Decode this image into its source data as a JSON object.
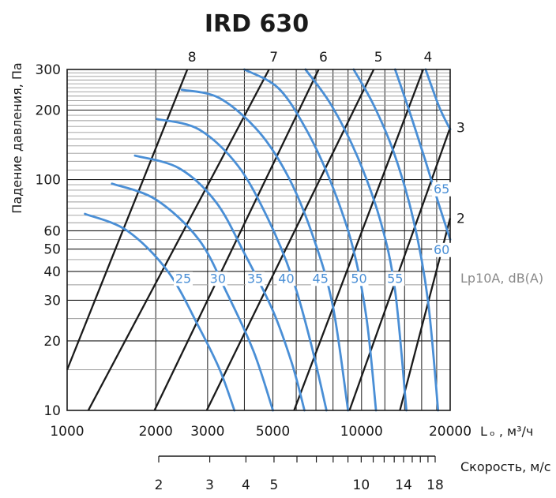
{
  "chart_data": {
    "type": "line",
    "title": "IRD 630",
    "xlabel": "L ₒ , м³/ч",
    "ylabel": "Падение давления, Па",
    "x_scale": "log",
    "y_scale": "log",
    "xlim": [
      1000,
      20000
    ],
    "ylim": [
      10,
      300
    ],
    "x_ticks": [
      {
        "value": 1000,
        "label": "1000"
      },
      {
        "value": 2000,
        "label": "2000"
      },
      {
        "value": 3000,
        "label": "3000"
      },
      {
        "value": 5000,
        "label": "5000"
      },
      {
        "value": 10000,
        "label": "10000"
      },
      {
        "value": 20000,
        "label": "20000"
      }
    ],
    "y_ticks": [
      {
        "value": 10,
        "label": "10"
      },
      {
        "value": 20,
        "label": "20"
      },
      {
        "value": 30,
        "label": "30"
      },
      {
        "value": 40,
        "label": "40"
      },
      {
        "value": 50,
        "label": "50"
      },
      {
        "value": 60,
        "label": "60"
      },
      {
        "value": 100,
        "label": "100"
      },
      {
        "value": 200,
        "label": "200"
      },
      {
        "value": 300,
        "label": "300"
      }
    ],
    "grid": true,
    "velocity_axis": {
      "label": "Скорость, м/с",
      "ticks": [
        {
          "value": 2,
          "label": "2"
        },
        {
          "value": 3,
          "label": "3"
        },
        {
          "value": 4,
          "label": "4"
        },
        {
          "value": 5,
          "label": "5"
        },
        {
          "value": 10,
          "label": "10"
        },
        {
          "value": 14,
          "label": "14"
        },
        {
          "value": 18,
          "label": "18"
        }
      ]
    },
    "damper_position_lines": [
      {
        "label": "8",
        "points": [
          [
            1000,
            15
          ],
          [
            2560,
            300
          ]
        ]
      },
      {
        "label": "7",
        "points": [
          [
            1180,
            10
          ],
          [
            4850,
            300
          ]
        ]
      },
      {
        "label": "6",
        "points": [
          [
            1980,
            10
          ],
          [
            7150,
            300
          ]
        ]
      },
      {
        "label": "5",
        "points": [
          [
            2980,
            10
          ],
          [
            11000,
            300
          ]
        ]
      },
      {
        "label": "4",
        "points": [
          [
            5900,
            10
          ],
          [
            16200,
            300
          ]
        ]
      },
      {
        "label": "3",
        "points": [
          [
            9100,
            10
          ],
          [
            20000,
            168
          ]
        ]
      },
      {
        "label": "2",
        "points": [
          [
            13500,
            10
          ],
          [
            20000,
            68
          ]
        ]
      }
    ],
    "sound_level_label": "Lp10A, dB(A)",
    "series": [
      {
        "name": "25",
        "points": [
          [
            1150,
            71
          ],
          [
            1600,
            60
          ],
          [
            2200,
            40
          ],
          [
            2800,
            23
          ],
          [
            3300,
            15
          ],
          [
            3700,
            10
          ]
        ]
      },
      {
        "name": "30",
        "points": [
          [
            1420,
            96
          ],
          [
            2000,
            82
          ],
          [
            2800,
            55
          ],
          [
            3500,
            32
          ],
          [
            4300,
            18
          ],
          [
            5000,
            10
          ]
        ]
      },
      {
        "name": "35",
        "points": [
          [
            1700,
            127
          ],
          [
            2400,
            112
          ],
          [
            3200,
            80
          ],
          [
            4000,
            48
          ],
          [
            5000,
            27
          ],
          [
            5800,
            16
          ],
          [
            6400,
            10
          ]
        ]
      },
      {
        "name": "40",
        "points": [
          [
            2020,
            183
          ],
          [
            2800,
            165
          ],
          [
            3800,
            115
          ],
          [
            4800,
            68
          ],
          [
            5800,
            38
          ],
          [
            6700,
            20
          ],
          [
            7600,
            10
          ]
        ]
      },
      {
        "name": "45",
        "points": [
          [
            2450,
            245
          ],
          [
            3300,
            225
          ],
          [
            4500,
            160
          ],
          [
            5700,
            100
          ],
          [
            6900,
            55
          ],
          [
            8000,
            28
          ],
          [
            9000,
            10
          ]
        ]
      },
      {
        "name": "50",
        "points": [
          [
            4000,
            300
          ],
          [
            5200,
            250
          ],
          [
            6400,
            170
          ],
          [
            7800,
            100
          ],
          [
            9300,
            52
          ],
          [
            10400,
            25
          ],
          [
            11200,
            10
          ]
        ]
      },
      {
        "name": "55",
        "points": [
          [
            6450,
            300
          ],
          [
            7900,
            210
          ],
          [
            9700,
            125
          ],
          [
            11600,
            66
          ],
          [
            13000,
            33
          ],
          [
            14200,
            10
          ]
        ]
      },
      {
        "name": "60",
        "points": [
          [
            9400,
            300
          ],
          [
            11000,
            210
          ],
          [
            12900,
            130
          ],
          [
            15000,
            67
          ],
          [
            16800,
            30
          ],
          [
            18200,
            10
          ]
        ]
      },
      {
        "name": "65",
        "points": [
          [
            13000,
            300
          ],
          [
            14500,
            200
          ],
          [
            16500,
            120
          ],
          [
            18200,
            80
          ],
          [
            20000,
            55
          ]
        ]
      },
      {
        "name": "",
        "points": [
          [
            16500,
            300
          ],
          [
            18400,
            205
          ],
          [
            20000,
            165
          ]
        ]
      }
    ],
    "curve_labels": [
      {
        "text": "25",
        "x": 2480,
        "y": 36
      },
      {
        "text": "30",
        "x": 3250,
        "y": 36
      },
      {
        "text": "35",
        "x": 4350,
        "y": 36
      },
      {
        "text": "40",
        "x": 5550,
        "y": 36
      },
      {
        "text": "45",
        "x": 7250,
        "y": 36
      },
      {
        "text": "50",
        "x": 9800,
        "y": 36
      },
      {
        "text": "55",
        "x": 13000,
        "y": 36
      },
      {
        "text": "60",
        "x": 18700,
        "y": 48
      },
      {
        "text": "65",
        "x": 18700,
        "y": 88
      }
    ]
  }
}
